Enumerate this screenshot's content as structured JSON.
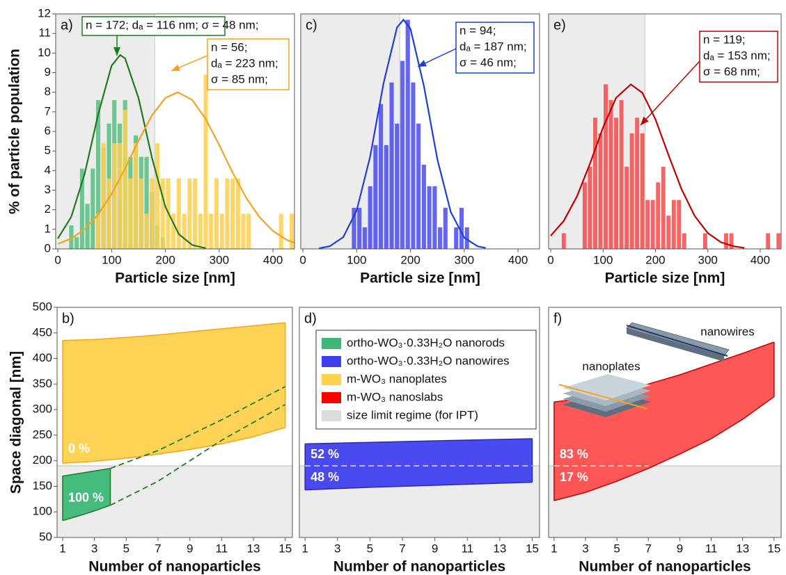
{
  "chart_data": [
    {
      "type": "histogram",
      "label": "a)",
      "x_label": "Particle size [nm]",
      "y_label": "% of particle population",
      "xlim": [
        -4,
        440
      ],
      "xticks": [
        0,
        100,
        200,
        300,
        400
      ],
      "ylim": [
        0,
        12
      ],
      "yticks": [
        0,
        1,
        2,
        3,
        4,
        5,
        6,
        7,
        8,
        9,
        10,
        11,
        12
      ],
      "size_limit": 180,
      "series": [
        {
          "color": "#55c07f",
          "bins": [
            20,
            30,
            40,
            50,
            60,
            70,
            80,
            90,
            100,
            110,
            120,
            130,
            140,
            150,
            160,
            170,
            180,
            190,
            200
          ],
          "values": [
            1.2,
            0.6,
            4.1,
            2.3,
            4.1,
            7.6,
            5.2,
            6.4,
            7.6,
            6.4,
            7.6,
            4.7,
            5.8,
            4.7,
            4.7,
            2.9,
            1.2,
            0.6
          ],
          "fit": {
            "color": "#1e7a1e",
            "x": [
              0,
              25,
              50,
              75,
              100,
              116,
              125,
              150,
              175,
              200,
              225,
              250,
              275
            ],
            "values": [
              0.53,
              1.64,
              3.85,
              6.87,
              9.36,
              9.9,
              9.73,
              7.7,
              4.65,
              2.14,
              0.75,
              0.2,
              0.04
            ]
          },
          "annotation": [
            "n = 172; dₐ = 116 nm; σ = 48 nm;"
          ]
        },
        {
          "color": "#ffd04d",
          "bins": [
            70,
            80,
            90,
            100,
            110,
            120,
            130,
            140,
            150,
            160,
            170,
            180,
            190,
            200,
            210,
            220,
            230,
            240,
            250,
            260,
            270,
            280,
            290,
            300,
            310,
            320,
            330,
            340,
            350,
            360,
            370,
            380,
            390,
            400,
            410,
            420,
            430,
            440
          ],
          "values": [
            1.8,
            5.4,
            3.6,
            5.4,
            5.4,
            7.1,
            3.6,
            5.4,
            3.6,
            1.8,
            3.6,
            5.4,
            3.6,
            3.6,
            1.8,
            3.6,
            1.8,
            3.6,
            3.6,
            1.8,
            8.9,
            1.8,
            3.6,
            1.8,
            3.6,
            3.6,
            3.6,
            1.8,
            1.8,
            0,
            0,
            0,
            0,
            0,
            1.8,
            0,
            1.8
          ],
          "fit": {
            "color": "#f5a31a",
            "x": [
              0,
              25,
              50,
              75,
              100,
              125,
              150,
              175,
              200,
              223,
              250,
              275,
              300,
              325,
              350,
              375,
              400,
              425,
              440
            ],
            "values": [
              0.26,
              0.53,
              1.01,
              1.76,
              2.81,
              4.11,
              5.53,
              6.82,
              7.71,
              8.0,
              7.61,
              6.63,
              5.31,
              3.89,
              2.62,
              1.62,
              0.92,
              0.47,
              0.31
            ]
          },
          "annotation": [
            "n = 56;",
            "dₐ = 223 nm;",
            "σ = 85 nm;"
          ]
        }
      ]
    },
    {
      "type": "histogram",
      "label": "c)",
      "x_label": "Particle size [nm]",
      "xlim": [
        -4,
        440
      ],
      "xticks": [
        0,
        100,
        200,
        300,
        400
      ],
      "ylim": [
        0,
        12
      ],
      "size_limit": 180,
      "series": [
        {
          "color": "#4a4af2",
          "bins": [
            90,
            100,
            110,
            120,
            130,
            140,
            150,
            160,
            170,
            180,
            190,
            200,
            210,
            220,
            230,
            240,
            250,
            260,
            270,
            280,
            290,
            300,
            310
          ],
          "values": [
            2.1,
            2.1,
            1.1,
            3.2,
            5.3,
            7.4,
            5.3,
            8.5,
            6.4,
            9.6,
            11.7,
            8.5,
            6.4,
            4.3,
            3.2,
            3.2,
            1.1,
            2.1,
            0,
            1.1,
            2.1,
            1.1
          ],
          "fit": {
            "color": "#1a3fd6",
            "x": [
              30,
              50,
              75,
              100,
              125,
              150,
              175,
              187,
              200,
              225,
              250,
              275,
              300,
              325,
              340
            ],
            "values": [
              0.03,
              0.14,
              0.6,
              1.96,
              4.72,
              8.47,
              11.31,
              11.7,
              11.24,
              8.32,
              4.58,
              1.88,
              0.57,
              0.13,
              0.05
            ]
          },
          "annotation": [
            "n = 94;",
            "dₐ = 187 nm;",
            "σ = 46 nm;"
          ]
        }
      ]
    },
    {
      "type": "histogram",
      "label": "e)",
      "x_label": "Particle size [nm]",
      "xlim": [
        -4,
        440
      ],
      "xticks": [
        0,
        100,
        200,
        300,
        400
      ],
      "ylim": [
        0,
        12
      ],
      "size_limit": 180,
      "series": [
        {
          "color": "#f54a4a",
          "bins": [
            20,
            30,
            40,
            50,
            60,
            70,
            80,
            90,
            100,
            110,
            120,
            130,
            140,
            150,
            160,
            170,
            180,
            190,
            200,
            210,
            220,
            230,
            240,
            250,
            260,
            270,
            280,
            290,
            300,
            310,
            320,
            330,
            340,
            350,
            360,
            370,
            380,
            390,
            400,
            410,
            420,
            430,
            440
          ],
          "values": [
            0.8,
            0,
            0,
            0,
            3.4,
            4.2,
            6.7,
            5.9,
            8.4,
            7.6,
            6.7,
            7.6,
            4.2,
            5.9,
            6.7,
            5.9,
            2.5,
            2.5,
            3.4,
            4.2,
            1.7,
            2.5,
            2.5,
            0.8,
            0,
            0,
            0,
            0.8,
            0,
            0,
            0,
            0.8,
            0.8,
            0,
            0,
            0,
            0,
            0,
            0,
            0.8,
            0,
            0.8
          ],
          "fit": {
            "color": "#c00000",
            "x": [
              0,
              25,
              50,
              75,
              100,
              125,
              153,
              175,
              200,
              225,
              250,
              275,
              300,
              325,
              350,
              370
            ],
            "values": [
              0.67,
              1.43,
              2.67,
              4.35,
              6.2,
              7.72,
              8.4,
              7.97,
              6.62,
              4.79,
              3.04,
              1.68,
              0.81,
              0.34,
              0.13,
              0.05
            ]
          },
          "annotation": [
            "n = 119;",
            "dₐ = 153 nm;",
            "σ = 68 nm;"
          ]
        }
      ]
    },
    {
      "type": "band",
      "label": "b)",
      "x_label": "Number of nanoparticles",
      "y_label": "Space diagonal [nm]",
      "xlim": [
        0.65,
        15.45
      ],
      "xticks": [
        1,
        3,
        5,
        7,
        9,
        11,
        13,
        15
      ],
      "ylim": [
        50,
        500
      ],
      "yticks": [
        50,
        100,
        150,
        200,
        250,
        300,
        350,
        400,
        450,
        500
      ],
      "size_limit": 190,
      "series": [
        {
          "color": "#ffd24d",
          "line": "#f5a31a",
          "x": [
            1,
            3,
            5,
            7,
            9,
            11,
            13,
            15
          ],
          "lower": [
            195,
            199,
            205,
            213,
            222,
            233,
            247,
            265
          ],
          "upper": [
            435,
            437,
            441,
            446,
            452,
            458,
            464,
            470
          ],
          "labels": [
            "0 %"
          ]
        },
        {
          "color": "#3cb878",
          "line": "#1e7a1e",
          "x": [
            1,
            2,
            3,
            4
          ],
          "lower": [
            83,
            92,
            102,
            113
          ],
          "upper": [
            170,
            175,
            180,
            185
          ],
          "labels": [
            "100 %"
          ]
        }
      ],
      "dashed": [
        {
          "color": "#1e7a1e",
          "x": [
            4,
            7,
            11,
            15
          ],
          "values": [
            185,
            220,
            280,
            345
          ]
        },
        {
          "color": "#1e7a1e",
          "x": [
            4,
            7,
            11,
            15
          ],
          "values": [
            113,
            160,
            240,
            310
          ]
        }
      ]
    },
    {
      "type": "band",
      "label": "d)",
      "x_label": "Number of nanoparticles",
      "xlim": [
        0.65,
        15.45
      ],
      "xticks": [
        1,
        3,
        5,
        7,
        9,
        11,
        13,
        15
      ],
      "ylim": [
        50,
        500
      ],
      "size_limit": 190,
      "series": [
        {
          "color": "#4040f0",
          "line": "#2a2aa8",
          "x": [
            1,
            5,
            9,
            15
          ],
          "lower": [
            143,
            148,
            152,
            158
          ],
          "upper": [
            233,
            236,
            239,
            243
          ],
          "labels": [
            "52 %",
            "48 %"
          ]
        }
      ],
      "legend": [
        {
          "label": "ortho-WO₃·0.33H₂O nanorods",
          "color": "#3cb878"
        },
        {
          "label": "ortho-WO₃·0.33H₂O nanowires",
          "color": "#4040f0"
        },
        {
          "label": "m-WO₃ nanoplates",
          "color": "#ffd24d"
        },
        {
          "label": "m-WO₃ nanoslabs",
          "color": "#ff0000"
        },
        {
          "label": "size limit regime (for IPT)",
          "color": "#dcdcdc"
        }
      ]
    },
    {
      "type": "band",
      "label": "f)",
      "x_label": "Number of nanoparticles",
      "xlim": [
        0.65,
        15.45
      ],
      "xticks": [
        1,
        3,
        5,
        7,
        9,
        11,
        13,
        15
      ],
      "ylim": [
        50,
        500
      ],
      "size_limit": 190,
      "series": [
        {
          "color": "#ff4d4d",
          "line": "#c00000",
          "x": [
            1,
            3,
            5,
            7,
            9,
            11,
            13,
            15
          ],
          "lower": [
            122,
            138,
            160,
            185,
            213,
            243,
            281,
            325
          ],
          "upper": [
            315,
            322,
            334,
            350,
            368,
            389,
            410,
            432
          ],
          "labels": [
            "83 %",
            "17 %"
          ]
        }
      ],
      "insets": [
        "nanoplates",
        "nanowires"
      ]
    }
  ]
}
